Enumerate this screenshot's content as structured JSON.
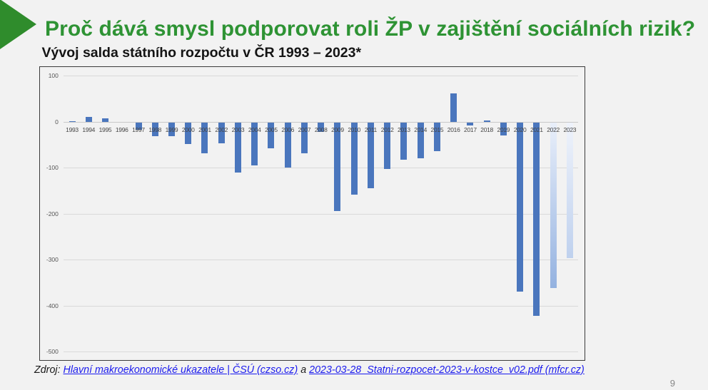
{
  "slide": {
    "title": "Proč dává smysl podporovat roli ŽP v zajištění sociálních rizik?",
    "page_number": "9"
  },
  "colors": {
    "background": "#f2f2f2",
    "title_green": "#2e9334",
    "arrow_green": "#2f8c2c",
    "bar_blue": "#4a76bd",
    "forecast_2022_top": "#e9effa",
    "forecast_2022_bottom": "#94b2e0",
    "forecast_2023_top": "#eff3fb",
    "forecast_2023_bottom": "#bfd1ee",
    "hyperlink_blue": "#1b1bee"
  },
  "chart_data": {
    "type": "bar",
    "title": "Vývoj salda státního rozpočtu v ČR 1993 – 2023*",
    "xlabel": "",
    "ylabel": "",
    "ylim": [
      -500,
      100
    ],
    "yticks": [
      100,
      0,
      -100,
      -200,
      -300,
      -400,
      -500
    ],
    "grid": true,
    "legend": false,
    "categories": [
      "1993",
      "1994",
      "1995",
      "1996",
      "1997",
      "1998",
      "1999",
      "2000",
      "2001",
      "2002",
      "2003",
      "2004",
      "2005",
      "2006",
      "2007",
      "2008",
      "2009",
      "2010",
      "2011",
      "2012",
      "2013",
      "2014",
      "2015",
      "2016",
      "2017",
      "2018",
      "2019",
      "2020",
      "2021",
      "2022",
      "2023"
    ],
    "values": [
      1.1,
      10.4,
      7.2,
      -1.6,
      -15.7,
      -29.3,
      -29.6,
      -46.1,
      -67.7,
      -45.7,
      -109.1,
      -93.7,
      -56.3,
      -97.6,
      -66.4,
      -20.0,
      -192.4,
      -156.4,
      -142.8,
      -101.0,
      -81.3,
      -77.8,
      -62.8,
      61.8,
      -6.2,
      2.9,
      -28.5,
      -367.4,
      -419.7,
      -360.4,
      -295.0
    ],
    "forecast_categories": [
      "2022",
      "2023"
    ]
  },
  "source": {
    "prefix": "Zdroj: ",
    "link1": "Hlavní makroekonomické ukazatele | ČSÚ (czso.cz)",
    "separator": " a ",
    "link2": "2023-03-28_Statni-rozpocet-2023-v-kostce_v02.pdf (mfcr.cz)"
  }
}
